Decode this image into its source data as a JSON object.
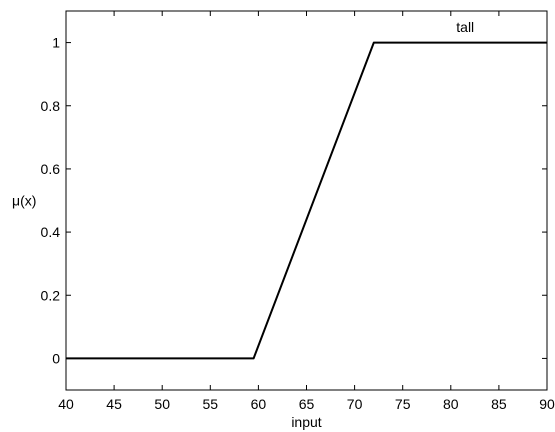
{
  "chart_data": {
    "type": "line",
    "title": "",
    "xlabel": "input",
    "ylabel": "μ(x)",
    "xlim": [
      40,
      90
    ],
    "ylim": [
      -0.1,
      1.1
    ],
    "xticks": [
      40,
      45,
      50,
      55,
      60,
      65,
      70,
      75,
      80,
      85,
      90
    ],
    "yticks": [
      0,
      0.2,
      0.4,
      0.6,
      0.8,
      1
    ],
    "ytick_labels": [
      "0",
      "0.2",
      "0.4",
      "0.6",
      "0.8",
      "1"
    ],
    "grid": false,
    "series": [
      {
        "name": "tall",
        "x": [
          40,
          59.5,
          72,
          90
        ],
        "y": [
          0,
          0,
          1,
          1
        ]
      }
    ],
    "annotations": [
      {
        "text": "tall",
        "x": 81.5,
        "y": 1.05
      }
    ],
    "colors": {
      "line": "#000000",
      "axes": "#000000",
      "background": "#ffffff"
    }
  }
}
